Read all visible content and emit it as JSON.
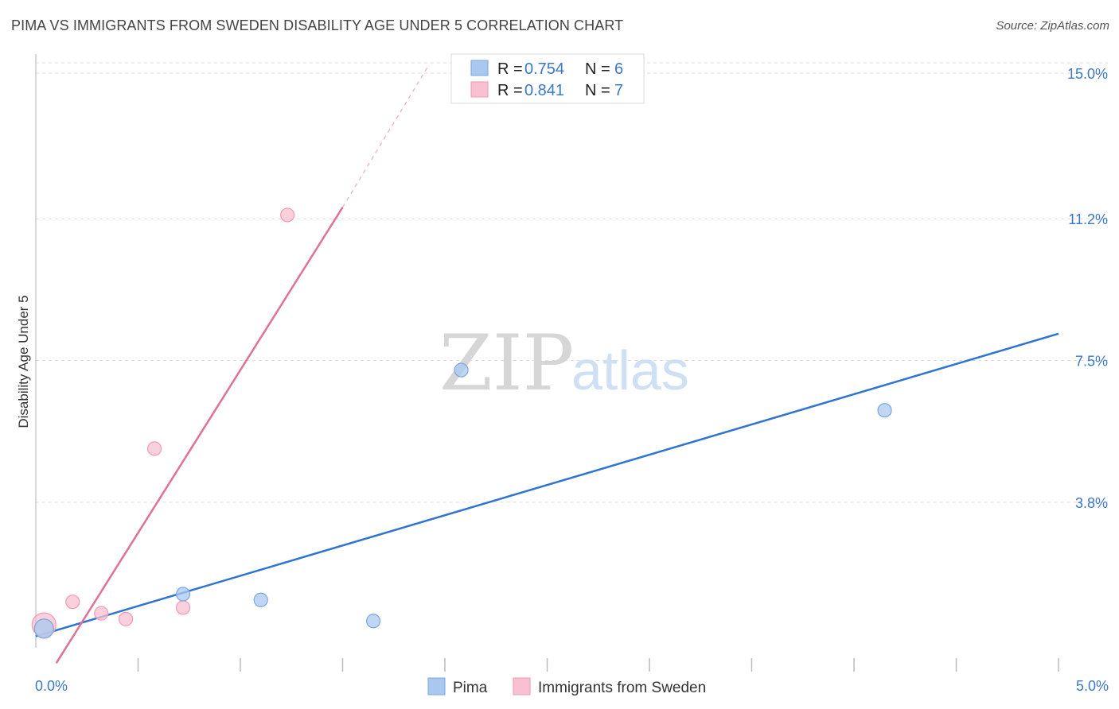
{
  "title": "PIMA VS IMMIGRANTS FROM SWEDEN DISABILITY AGE UNDER 5 CORRELATION CHART",
  "source": "Source: ZipAtlas.com",
  "watermark": {
    "zip": "ZIP",
    "atlas": "atlas"
  },
  "chart_data": {
    "type": "scatter",
    "title": "PIMA VS IMMIGRANTS FROM SWEDEN DISABILITY AGE UNDER 5 CORRELATION CHART",
    "xlabel": "",
    "ylabel": "Disability Age Under 5",
    "xlim": [
      0,
      5
    ],
    "ylim": [
      0,
      15.5
    ],
    "x_tick_labels": [
      "0.0%",
      "5.0%"
    ],
    "y_ticks": [
      3.8,
      7.5,
      11.2,
      15.0
    ],
    "y_tick_labels": [
      "3.8%",
      "7.5%",
      "11.2%",
      "15.0%"
    ],
    "grid": true,
    "legend": [
      {
        "name": "Pima",
        "r_label": "R =",
        "r": "0.754",
        "n_label": "N =",
        "n": "6",
        "color": "#a9c8f0",
        "stroke": "#7aa6de"
      },
      {
        "name": "Immigrants from Sweden",
        "r_label": "R =",
        "r": "0.841",
        "n_label": "N =",
        "n": "7",
        "color": "#f8c0d0",
        "stroke": "#ee9ab2"
      }
    ],
    "series": [
      {
        "name": "Pima",
        "color": "#a9c8f0",
        "stroke": "#7aa6de",
        "line_color": "#2f74d0",
        "points": [
          {
            "x": 0.04,
            "y": 0.5,
            "size": "large"
          },
          {
            "x": 0.72,
            "y": 1.4
          },
          {
            "x": 1.1,
            "y": 1.25
          },
          {
            "x": 1.65,
            "y": 0.7
          },
          {
            "x": 2.08,
            "y": 7.25
          },
          {
            "x": 4.15,
            "y": 6.2
          }
        ],
        "trend": {
          "x0": 0.0,
          "y0": 0.3,
          "x1": 5.0,
          "y1": 8.2
        }
      },
      {
        "name": "Immigrants from Sweden",
        "color": "#f8c0d0",
        "stroke": "#ee9ab2",
        "line_color": "#e0719a",
        "points": [
          {
            "x": 0.04,
            "y": 0.6,
            "size": "large"
          },
          {
            "x": 0.18,
            "y": 1.2
          },
          {
            "x": 0.32,
            "y": 0.9
          },
          {
            "x": 0.44,
            "y": 0.75
          },
          {
            "x": 0.58,
            "y": 5.2
          },
          {
            "x": 0.72,
            "y": 1.05
          },
          {
            "x": 1.23,
            "y": 11.3
          }
        ],
        "trend": {
          "x0": 0.1,
          "y0": -0.4,
          "x1": 1.5,
          "y1": 11.5
        },
        "trend_dashed": {
          "x0": 1.5,
          "y0": 11.5,
          "x1": 1.92,
          "y1": 15.2
        }
      }
    ]
  }
}
